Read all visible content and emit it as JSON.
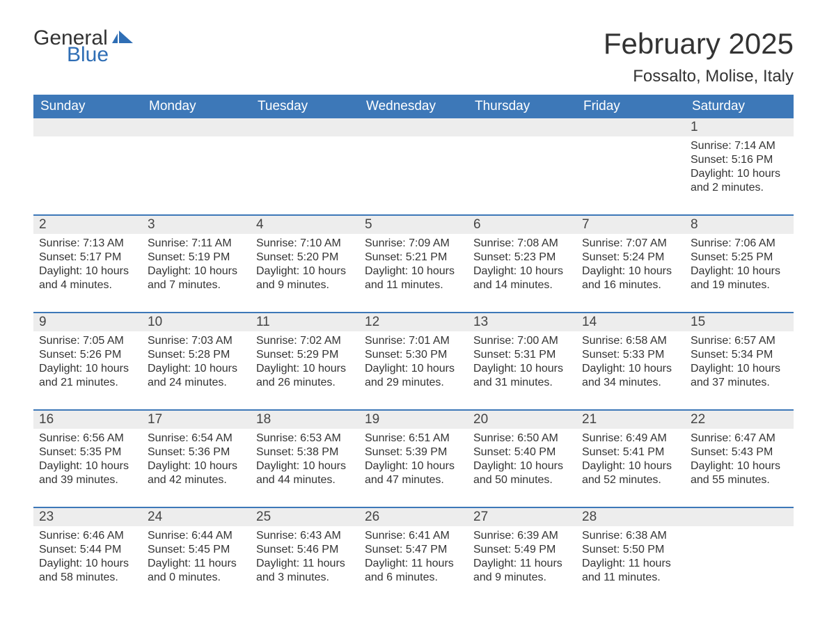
{
  "logo": {
    "word1": "General",
    "word2": "Blue"
  },
  "title": "February 2025",
  "location": "Fossalto, Molise, Italy",
  "colors": {
    "header_bg": "#3d78b8",
    "header_text": "#ffffff",
    "daynum_bg": "#ededed",
    "border": "#3d78b8",
    "text": "#333333",
    "logo_accent": "#2f6eb5"
  },
  "days_of_week": [
    "Sunday",
    "Monday",
    "Tuesday",
    "Wednesday",
    "Thursday",
    "Friday",
    "Saturday"
  ],
  "weeks": [
    [
      {
        "n": "",
        "sunrise": "",
        "sunset": "",
        "daylight": ""
      },
      {
        "n": "",
        "sunrise": "",
        "sunset": "",
        "daylight": ""
      },
      {
        "n": "",
        "sunrise": "",
        "sunset": "",
        "daylight": ""
      },
      {
        "n": "",
        "sunrise": "",
        "sunset": "",
        "daylight": ""
      },
      {
        "n": "",
        "sunrise": "",
        "sunset": "",
        "daylight": ""
      },
      {
        "n": "",
        "sunrise": "",
        "sunset": "",
        "daylight": ""
      },
      {
        "n": "1",
        "sunrise": "Sunrise: 7:14 AM",
        "sunset": "Sunset: 5:16 PM",
        "daylight": "Daylight: 10 hours and 2 minutes."
      }
    ],
    [
      {
        "n": "2",
        "sunrise": "Sunrise: 7:13 AM",
        "sunset": "Sunset: 5:17 PM",
        "daylight": "Daylight: 10 hours and 4 minutes."
      },
      {
        "n": "3",
        "sunrise": "Sunrise: 7:11 AM",
        "sunset": "Sunset: 5:19 PM",
        "daylight": "Daylight: 10 hours and 7 minutes."
      },
      {
        "n": "4",
        "sunrise": "Sunrise: 7:10 AM",
        "sunset": "Sunset: 5:20 PM",
        "daylight": "Daylight: 10 hours and 9 minutes."
      },
      {
        "n": "5",
        "sunrise": "Sunrise: 7:09 AM",
        "sunset": "Sunset: 5:21 PM",
        "daylight": "Daylight: 10 hours and 11 minutes."
      },
      {
        "n": "6",
        "sunrise": "Sunrise: 7:08 AM",
        "sunset": "Sunset: 5:23 PM",
        "daylight": "Daylight: 10 hours and 14 minutes."
      },
      {
        "n": "7",
        "sunrise": "Sunrise: 7:07 AM",
        "sunset": "Sunset: 5:24 PM",
        "daylight": "Daylight: 10 hours and 16 minutes."
      },
      {
        "n": "8",
        "sunrise": "Sunrise: 7:06 AM",
        "sunset": "Sunset: 5:25 PM",
        "daylight": "Daylight: 10 hours and 19 minutes."
      }
    ],
    [
      {
        "n": "9",
        "sunrise": "Sunrise: 7:05 AM",
        "sunset": "Sunset: 5:26 PM",
        "daylight": "Daylight: 10 hours and 21 minutes."
      },
      {
        "n": "10",
        "sunrise": "Sunrise: 7:03 AM",
        "sunset": "Sunset: 5:28 PM",
        "daylight": "Daylight: 10 hours and 24 minutes."
      },
      {
        "n": "11",
        "sunrise": "Sunrise: 7:02 AM",
        "sunset": "Sunset: 5:29 PM",
        "daylight": "Daylight: 10 hours and 26 minutes."
      },
      {
        "n": "12",
        "sunrise": "Sunrise: 7:01 AM",
        "sunset": "Sunset: 5:30 PM",
        "daylight": "Daylight: 10 hours and 29 minutes."
      },
      {
        "n": "13",
        "sunrise": "Sunrise: 7:00 AM",
        "sunset": "Sunset: 5:31 PM",
        "daylight": "Daylight: 10 hours and 31 minutes."
      },
      {
        "n": "14",
        "sunrise": "Sunrise: 6:58 AM",
        "sunset": "Sunset: 5:33 PM",
        "daylight": "Daylight: 10 hours and 34 minutes."
      },
      {
        "n": "15",
        "sunrise": "Sunrise: 6:57 AM",
        "sunset": "Sunset: 5:34 PM",
        "daylight": "Daylight: 10 hours and 37 minutes."
      }
    ],
    [
      {
        "n": "16",
        "sunrise": "Sunrise: 6:56 AM",
        "sunset": "Sunset: 5:35 PM",
        "daylight": "Daylight: 10 hours and 39 minutes."
      },
      {
        "n": "17",
        "sunrise": "Sunrise: 6:54 AM",
        "sunset": "Sunset: 5:36 PM",
        "daylight": "Daylight: 10 hours and 42 minutes."
      },
      {
        "n": "18",
        "sunrise": "Sunrise: 6:53 AM",
        "sunset": "Sunset: 5:38 PM",
        "daylight": "Daylight: 10 hours and 44 minutes."
      },
      {
        "n": "19",
        "sunrise": "Sunrise: 6:51 AM",
        "sunset": "Sunset: 5:39 PM",
        "daylight": "Daylight: 10 hours and 47 minutes."
      },
      {
        "n": "20",
        "sunrise": "Sunrise: 6:50 AM",
        "sunset": "Sunset: 5:40 PM",
        "daylight": "Daylight: 10 hours and 50 minutes."
      },
      {
        "n": "21",
        "sunrise": "Sunrise: 6:49 AM",
        "sunset": "Sunset: 5:41 PM",
        "daylight": "Daylight: 10 hours and 52 minutes."
      },
      {
        "n": "22",
        "sunrise": "Sunrise: 6:47 AM",
        "sunset": "Sunset: 5:43 PM",
        "daylight": "Daylight: 10 hours and 55 minutes."
      }
    ],
    [
      {
        "n": "23",
        "sunrise": "Sunrise: 6:46 AM",
        "sunset": "Sunset: 5:44 PM",
        "daylight": "Daylight: 10 hours and 58 minutes."
      },
      {
        "n": "24",
        "sunrise": "Sunrise: 6:44 AM",
        "sunset": "Sunset: 5:45 PM",
        "daylight": "Daylight: 11 hours and 0 minutes."
      },
      {
        "n": "25",
        "sunrise": "Sunrise: 6:43 AM",
        "sunset": "Sunset: 5:46 PM",
        "daylight": "Daylight: 11 hours and 3 minutes."
      },
      {
        "n": "26",
        "sunrise": "Sunrise: 6:41 AM",
        "sunset": "Sunset: 5:47 PM",
        "daylight": "Daylight: 11 hours and 6 minutes."
      },
      {
        "n": "27",
        "sunrise": "Sunrise: 6:39 AM",
        "sunset": "Sunset: 5:49 PM",
        "daylight": "Daylight: 11 hours and 9 minutes."
      },
      {
        "n": "28",
        "sunrise": "Sunrise: 6:38 AM",
        "sunset": "Sunset: 5:50 PM",
        "daylight": "Daylight: 11 hours and 11 minutes."
      },
      {
        "n": "",
        "sunrise": "",
        "sunset": "",
        "daylight": ""
      }
    ]
  ]
}
